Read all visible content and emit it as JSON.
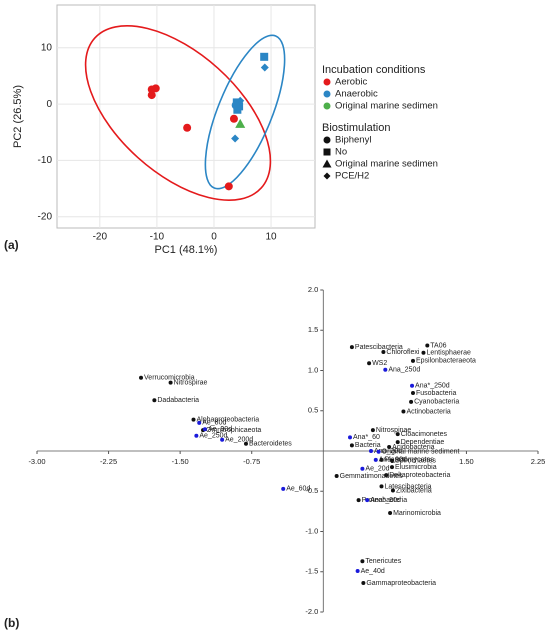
{
  "chart_data": [
    {
      "type": "scatter",
      "panel_label": "(a)",
      "xlabel": "PC1 (48.1%)",
      "ylabel": "PC2 (26.5%)",
      "xlim": [
        -27.5,
        17.7
      ],
      "ylim": [
        -22,
        17.6
      ],
      "xticks": [
        -20,
        -10,
        0,
        10
      ],
      "yticks": [
        10,
        0,
        -10,
        -20
      ],
      "grid": true,
      "legend_title": "Incubation conditions",
      "series": [
        {
          "name": "Aerobic",
          "color": "#e41a1c",
          "x": [
            -10.9,
            -10.2,
            -10.9,
            -4.7,
            3.5,
            2.6
          ],
          "y": [
            2.6,
            2.8,
            1.6,
            -4.2,
            -2.6,
            -14.6
          ],
          "markers": [
            "circle",
            "circle",
            "circle",
            "circle",
            "circle",
            "circle"
          ]
        },
        {
          "name": "Anaerobic",
          "color": "#2b86c5",
          "x": [
            8.8,
            4.0,
            4.4,
            4.1,
            8.9,
            3.7,
            4.6,
            3.8
          ],
          "y": [
            8.4,
            0.3,
            -0.4,
            -1.0,
            6.5,
            -6.1,
            0.6,
            -0.2
          ],
          "markers": [
            "square",
            "square",
            "square",
            "square",
            "diamond",
            "diamond",
            "diamond",
            "circle"
          ]
        },
        {
          "name": "Original marine sedimen",
          "color": "#4daf4a",
          "x": [
            4.6
          ],
          "y": [
            -3.5
          ],
          "markers": [
            "triangle"
          ]
        }
      ],
      "shape_legend": {
        "title": "Biostimulation",
        "items": [
          {
            "name": "Biphenyl",
            "marker": "circle"
          },
          {
            "name": "No",
            "marker": "square"
          },
          {
            "name": "Original marine sedimen",
            "marker": "triangle"
          },
          {
            "name": "PCE/H2",
            "marker": "diamond"
          }
        ]
      }
    },
    {
      "type": "biplot",
      "panel_label": "(b)",
      "xlim": [
        -3,
        2.25
      ],
      "ylim": [
        -2,
        2
      ],
      "xticks": [
        {
          "value": -3,
          "label": "-3.00"
        },
        {
          "value": -2.25,
          "label": "-2.25"
        },
        {
          "value": -1.5,
          "label": "-1.50"
        },
        {
          "value": -0.75,
          "label": "-0.75"
        },
        {
          "value": 1.5,
          "label": "1.50"
        },
        {
          "value": 2.25,
          "label": "2.25"
        }
      ],
      "yticks": [
        {
          "value": 2,
          "label": "2.0"
        },
        {
          "value": 1.5,
          "label": "1.5"
        },
        {
          "value": 1,
          "label": "1.0"
        },
        {
          "value": 0.5,
          "label": "0.5"
        },
        {
          "value": -0.5,
          "label": "-0.5"
        },
        {
          "value": -1,
          "label": "-1.0"
        },
        {
          "value": -1.5,
          "label": "-1.5"
        },
        {
          "value": -2,
          "label": "-2.0"
        }
      ],
      "series": [
        {
          "color": "#111111",
          "labels": [
            "Patescibacteria",
            "TA06",
            "Chloroflexi",
            "Lentisphaerae",
            "Epsilonbacteraeota",
            "WS2",
            "Fusobacteria",
            "Cyanobacteria",
            "Actinobacteria",
            "Cloacimonetes",
            "Nitrospinae",
            "Bacteria",
            "Verrucomicrobia",
            "Nitrospirae",
            "Dadabacteria",
            "Alphaproteobacteria",
            "Omnitrophicaeota",
            "Bacteroidetes",
            "Dependentiae",
            "Acidobacteria",
            "Planctomycetes",
            "Spirochaetes",
            "Elusimicrobia",
            "Deltaproteobacteria",
            "Zixibacteria",
            "Latescibacteria",
            "Gemmatimonadetes",
            "Proteobacteria",
            "Marinomicrobia",
            "Tenericutes",
            "Gammaproteobacteria"
          ],
          "x": [
            0.3,
            1.09,
            0.63,
            1.05,
            0.94,
            0.48,
            0.94,
            0.92,
            0.84,
            0.78,
            0.52,
            0.3,
            -1.91,
            -1.6,
            -1.77,
            -1.36,
            -1.26,
            -0.81,
            0.78,
            0.69,
            0.61,
            0.72,
            0.72,
            0.66,
            0.73,
            0.61,
            0.14,
            0.37,
            0.7,
            0.41,
            0.42
          ],
          "y": [
            1.29,
            1.31,
            1.23,
            1.22,
            1.12,
            1.09,
            0.72,
            0.61,
            0.49,
            0.21,
            0.26,
            0.07,
            0.91,
            0.85,
            0.63,
            0.39,
            0.26,
            0.09,
            0.11,
            0.05,
            -0.11,
            -0.12,
            -0.2,
            -0.3,
            -0.49,
            -0.44,
            -0.31,
            -0.61,
            -0.77,
            -1.37,
            -1.64
          ]
        },
        {
          "color": "#1a1adb",
          "labels": [
            "Ana_250d",
            "Ana*_250d",
            "Ae_80d",
            "Ae_90d",
            "Ae_250d",
            "Ae_200d",
            "Ana*_60",
            "Ana_20d",
            "Original marine sediment",
            "Ana_90d",
            "Ae_20d",
            "Ae_60d",
            "Ana*_90d",
            "Ae_40d"
          ],
          "x": [
            0.65,
            0.93,
            -1.3,
            -1.24,
            -1.33,
            -1.06,
            0.28,
            0.5,
            0.58,
            0.55,
            0.41,
            -0.42,
            0.46,
            0.36
          ],
          "y": [
            1.01,
            0.81,
            0.35,
            0.27,
            0.19,
            0.14,
            0.17,
            0.0,
            -0.01,
            -0.11,
            -0.22,
            -0.47,
            -0.61,
            -1.49
          ]
        }
      ]
    }
  ]
}
